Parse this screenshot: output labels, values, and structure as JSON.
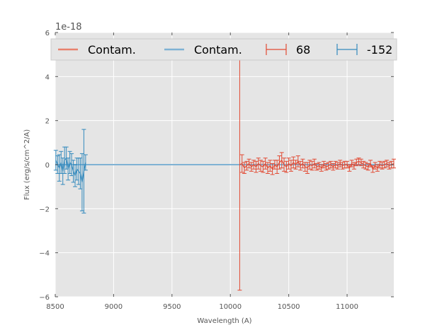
{
  "chart_data": {
    "type": "line",
    "title": "",
    "xlabel": "Wavelength (A)",
    "ylabel": "Flux (erg/s/cm^2/A)",
    "y_offset_label": "1e-18",
    "xlim": [
      8500,
      11400
    ],
    "ylim": [
      -6,
      6
    ],
    "x_ticks": [
      8500,
      9000,
      9500,
      10000,
      10500,
      11000
    ],
    "y_ticks": [
      -6,
      -4,
      -2,
      0,
      2,
      4,
      6
    ],
    "x_tick_labels": [
      "8500",
      "9000",
      "9500",
      "10000",
      "10500",
      "11000"
    ],
    "y_tick_labels": [
      "−6",
      "−4",
      "−2",
      "0",
      "2",
      "4",
      "6"
    ],
    "grid": true,
    "background": "#e5e5e5",
    "legend_position": "top",
    "legend": [
      {
        "label": "Contam.",
        "kind": "line",
        "color": "#e8826e"
      },
      {
        "label": "Contam.",
        "kind": "line",
        "color": "#7fb2d4"
      },
      {
        "label": "68",
        "kind": "errorbar",
        "color": "#e24a33"
      },
      {
        "label": "-152",
        "kind": "errorbar",
        "color": "#348abd"
      }
    ],
    "series": [
      {
        "name": "Contam.",
        "kind": "line",
        "color": "#e8826e",
        "x": [
          8500,
          11400
        ],
        "y": [
          0,
          0
        ]
      },
      {
        "name": "Contam.",
        "kind": "line",
        "color": "#7fb2d4",
        "x": [
          8500,
          11400
        ],
        "y": [
          0,
          0
        ]
      },
      {
        "name": "68",
        "kind": "errorbar",
        "color": "#e24a33",
        "x": [
          10080,
          10100,
          10120,
          10140,
          10160,
          10180,
          10200,
          10220,
          10240,
          10260,
          10280,
          10300,
          10320,
          10340,
          10360,
          10380,
          10400,
          10420,
          10440,
          10460,
          10480,
          10500,
          10520,
          10540,
          10560,
          10580,
          10600,
          10620,
          10640,
          10660,
          10680,
          10700,
          10720,
          10740,
          10760,
          10780,
          10800,
          10820,
          10840,
          10860,
          10880,
          10900,
          10920,
          10940,
          10960,
          10980,
          11000,
          11020,
          11040,
          11060,
          11080,
          11100,
          11120,
          11140,
          11160,
          11180,
          11200,
          11220,
          11240,
          11260,
          11280,
          11300,
          11320,
          11340,
          11360,
          11380,
          11400
        ],
        "y": [
          0.0,
          0.05,
          -0.15,
          -0.05,
          0.05,
          -0.1,
          0.0,
          -0.1,
          0.05,
          -0.05,
          -0.1,
          0.05,
          -0.15,
          -0.05,
          -0.2,
          0.0,
          -0.1,
          0.1,
          0.2,
          0.0,
          -0.1,
          0.05,
          -0.05,
          0.1,
          0.0,
          0.15,
          -0.05,
          0.05,
          -0.1,
          -0.15,
          0.0,
          -0.05,
          0.05,
          -0.1,
          -0.05,
          -0.15,
          0.0,
          -0.1,
          -0.05,
          0.0,
          -0.1,
          0.0,
          -0.05,
          0.05,
          -0.05,
          0.0,
          0.0,
          -0.15,
          0.05,
          -0.05,
          0.1,
          0.15,
          0.1,
          0.0,
          -0.05,
          -0.1,
          0.05,
          -0.2,
          -0.05,
          -0.15,
          0.0,
          -0.05,
          0.0,
          0.05,
          -0.05,
          0.0,
          0.05
        ],
        "err": [
          5.7,
          0.4,
          0.25,
          0.2,
          0.2,
          0.2,
          0.2,
          0.25,
          0.25,
          0.25,
          0.25,
          0.25,
          0.25,
          0.25,
          0.25,
          0.2,
          0.3,
          0.3,
          0.35,
          0.3,
          0.25,
          0.25,
          0.25,
          0.25,
          0.2,
          0.25,
          0.2,
          0.2,
          0.2,
          0.25,
          0.2,
          0.2,
          0.2,
          0.15,
          0.15,
          0.15,
          0.15,
          0.15,
          0.15,
          0.15,
          0.15,
          0.15,
          0.15,
          0.15,
          0.15,
          0.15,
          0.15,
          0.15,
          0.15,
          0.15,
          0.15,
          0.15,
          0.15,
          0.15,
          0.15,
          0.15,
          0.15,
          0.15,
          0.15,
          0.15,
          0.15,
          0.15,
          0.15,
          0.15,
          0.15,
          0.15,
          0.2
        ]
      },
      {
        "name": "-152",
        "kind": "errorbar",
        "color": "#348abd",
        "x": [
          8505,
          8520,
          8535,
          8550,
          8565,
          8580,
          8595,
          8610,
          8625,
          8640,
          8655,
          8670,
          8685,
          8700,
          8715,
          8730,
          8745,
          8760
        ],
        "y": [
          0.2,
          0.0,
          -0.15,
          0.1,
          -0.3,
          0.2,
          0.3,
          -0.2,
          0.1,
          0.0,
          -0.3,
          -0.5,
          -0.2,
          -0.3,
          -0.4,
          -0.8,
          -0.3,
          0.1
        ],
        "err": [
          0.45,
          0.4,
          0.6,
          0.5,
          0.6,
          0.6,
          0.5,
          0.5,
          0.5,
          0.5,
          0.5,
          0.5,
          0.5,
          0.6,
          0.7,
          1.3,
          1.9,
          0.35
        ]
      }
    ]
  }
}
